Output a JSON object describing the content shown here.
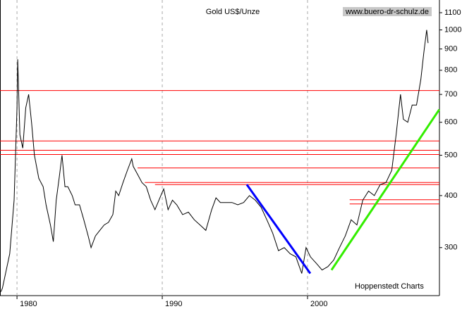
{
  "chart_data": {
    "type": "line",
    "title": "Gold US$/Unze",
    "source": "www.buero-dr-schulz.de",
    "credit": "Hoppenstedt Charts",
    "log_y": true,
    "grid": true,
    "xlim": [
      1978.83,
      2009.08
    ],
    "xticks": [
      1980,
      1990,
      2000
    ],
    "ylim": [
      230,
      1180
    ],
    "yticks": [
      300,
      400,
      500,
      600,
      700,
      800,
      900,
      1000,
      1100
    ],
    "color": "#000000",
    "x": [
      1978.9,
      1979.0,
      1979.5,
      1979.8,
      1980.0,
      1980.05,
      1980.2,
      1980.4,
      1980.6,
      1980.8,
      1981.0,
      1981.2,
      1981.5,
      1981.8,
      1982.0,
      1982.3,
      1982.5,
      1982.7,
      1982.9,
      1983.1,
      1983.3,
      1983.5,
      1983.8,
      1984.0,
      1984.3,
      1984.6,
      1984.9,
      1985.1,
      1985.4,
      1985.7,
      1986.0,
      1986.3,
      1986.6,
      1986.8,
      1987.0,
      1987.3,
      1987.6,
      1987.9,
      1988.0,
      1988.3,
      1988.6,
      1988.9,
      1989.2,
      1989.5,
      1989.9,
      1990.1,
      1990.4,
      1990.7,
      1991.0,
      1991.4,
      1991.8,
      1992.2,
      1992.6,
      1993.0,
      1993.4,
      1993.7,
      1994.0,
      1994.4,
      1994.8,
      1995.2,
      1995.6,
      1996.0,
      1996.4,
      1996.8,
      1997.2,
      1997.6,
      1998.0,
      1998.4,
      1998.8,
      1999.2,
      1999.6,
      1999.9,
      2000.2,
      2000.6,
      2001.0,
      2001.4,
      2001.8,
      2002.2,
      2002.6,
      2003.0,
      2003.4,
      2003.8,
      2004.2,
      2004.6,
      2005.0,
      2005.4,
      2005.8,
      2006.1,
      2006.4,
      2006.6,
      2006.9,
      2007.2,
      2007.5,
      2007.8,
      2008.0,
      2008.2,
      2008.3
    ],
    "values": [
      235,
      240,
      290,
      390,
      650,
      850,
      560,
      520,
      650,
      700,
      600,
      500,
      440,
      420,
      380,
      340,
      310,
      390,
      440,
      500,
      420,
      420,
      400,
      380,
      380,
      350,
      320,
      300,
      320,
      330,
      340,
      345,
      360,
      410,
      400,
      430,
      460,
      490,
      470,
      450,
      430,
      420,
      390,
      370,
      400,
      415,
      370,
      390,
      380,
      360,
      365,
      350,
      340,
      330,
      370,
      395,
      385,
      385,
      385,
      380,
      385,
      400,
      390,
      375,
      350,
      325,
      295,
      300,
      290,
      285,
      260,
      300,
      285,
      275,
      265,
      270,
      280,
      300,
      320,
      350,
      340,
      390,
      410,
      400,
      425,
      430,
      460,
      560,
      700,
      610,
      600,
      660,
      660,
      760,
      880,
      1000,
      930
    ],
    "hlines": [
      {
        "value": 715,
        "x_start": 1978.83,
        "color": "#ff0000"
      },
      {
        "value": 541,
        "x_start": 1978.83,
        "color": "#ff0000"
      },
      {
        "value": 514,
        "x_start": 1978.83,
        "color": "#ff0000"
      },
      {
        "value": 502,
        "x_start": 1978.83,
        "color": "#ff0000"
      },
      {
        "value": 466,
        "x_start": 1988.3,
        "color": "#ff0000"
      },
      {
        "value": 430,
        "x_start": 1988.8,
        "color": "#ff0000"
      },
      {
        "value": 425,
        "x_start": 1989.5,
        "color": "#ff0000"
      },
      {
        "value": 391,
        "x_start": 2002.9,
        "color": "#ff0000"
      },
      {
        "value": 382,
        "x_start": 2002.9,
        "color": "#ff0000"
      }
    ],
    "trend_lines": [
      {
        "color": "#0000ff",
        "x": [
          1995.82,
          2000.19
        ],
        "y": [
          425,
          260
        ]
      },
      {
        "color": "#33ee00",
        "x": [
          2001.65,
          2009.07
        ],
        "y": [
          265,
          644
        ]
      }
    ]
  }
}
